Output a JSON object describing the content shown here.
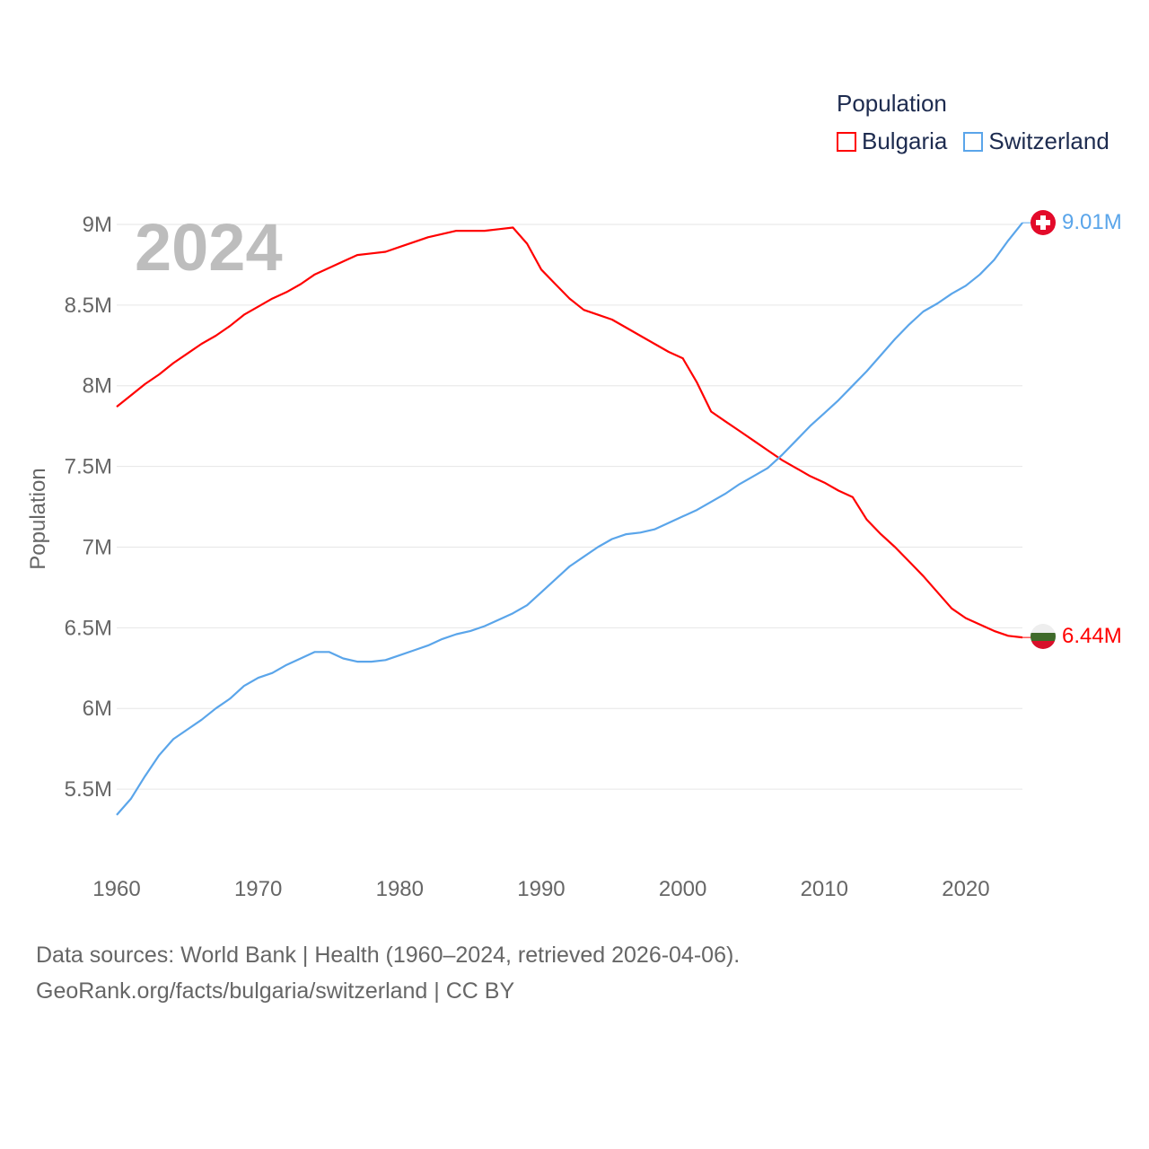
{
  "legend": {
    "title": "Population",
    "items": [
      {
        "label": "Bulgaria",
        "color": "#ff0000"
      },
      {
        "label": "Switzerland",
        "color": "#5aa5ea"
      }
    ]
  },
  "year_label": "2024",
  "end_labels": {
    "switzerland": "9.01M",
    "bulgaria": "6.44M"
  },
  "footer": {
    "line1": "Data sources: World Bank | Health (1960–2024, retrieved 2026-04-06).",
    "line2": "GeoRank.org/facts/bulgaria/switzerland | CC BY"
  },
  "chart_data": {
    "type": "line",
    "title": "",
    "xlabel": "",
    "ylabel": "Population",
    "xlim": [
      1960,
      2024
    ],
    "ylim": [
      5100000,
      9200000
    ],
    "x_ticks": [
      1960,
      1970,
      1980,
      1990,
      2000,
      2010,
      2020
    ],
    "y_ticks": [
      {
        "v": 5500000,
        "label": "5.5M"
      },
      {
        "v": 6000000,
        "label": "6M"
      },
      {
        "v": 6500000,
        "label": "6.5M"
      },
      {
        "v": 7000000,
        "label": "7M"
      },
      {
        "v": 7500000,
        "label": "7.5M"
      },
      {
        "v": 8000000,
        "label": "8M"
      },
      {
        "v": 8500000,
        "label": "8.5M"
      },
      {
        "v": 9000000,
        "label": "9M"
      }
    ],
    "grid": true,
    "legend_position": "top-right",
    "x": [
      1960,
      1961,
      1962,
      1963,
      1964,
      1965,
      1966,
      1967,
      1968,
      1969,
      1970,
      1971,
      1972,
      1973,
      1974,
      1975,
      1976,
      1977,
      1978,
      1979,
      1980,
      1981,
      1982,
      1983,
      1984,
      1985,
      1986,
      1987,
      1988,
      1989,
      1990,
      1991,
      1992,
      1993,
      1994,
      1995,
      1996,
      1997,
      1998,
      1999,
      2000,
      2001,
      2002,
      2003,
      2004,
      2005,
      2006,
      2007,
      2008,
      2009,
      2010,
      2011,
      2012,
      2013,
      2014,
      2015,
      2016,
      2017,
      2018,
      2019,
      2020,
      2021,
      2022,
      2023,
      2024
    ],
    "series": [
      {
        "name": "Bulgaria",
        "color": "#ff0000",
        "values": [
          7.87,
          7.94,
          8.01,
          8.07,
          8.14,
          8.2,
          8.26,
          8.31,
          8.37,
          8.44,
          8.49,
          8.54,
          8.58,
          8.63,
          8.69,
          8.73,
          8.77,
          8.81,
          8.82,
          8.83,
          8.86,
          8.89,
          8.92,
          8.94,
          8.96,
          8.96,
          8.96,
          8.97,
          8.98,
          8.88,
          8.72,
          8.63,
          8.54,
          8.47,
          8.44,
          8.41,
          8.36,
          8.31,
          8.26,
          8.21,
          8.17,
          8.02,
          7.84,
          7.78,
          7.72,
          7.66,
          7.6,
          7.54,
          7.49,
          7.44,
          7.4,
          7.35,
          7.31,
          7.17,
          7.08,
          7.0,
          6.91,
          6.82,
          6.72,
          6.62,
          6.56,
          6.52,
          6.48,
          6.45,
          6.44
        ]
      },
      {
        "name": "Switzerland",
        "color": "#5aa5ea",
        "values": [
          5.34,
          5.44,
          5.58,
          5.71,
          5.81,
          5.87,
          5.93,
          6.0,
          6.06,
          6.14,
          6.19,
          6.22,
          6.27,
          6.31,
          6.35,
          6.35,
          6.31,
          6.29,
          6.29,
          6.3,
          6.33,
          6.36,
          6.39,
          6.43,
          6.46,
          6.48,
          6.51,
          6.55,
          6.59,
          6.64,
          6.72,
          6.8,
          6.88,
          6.94,
          7.0,
          7.05,
          7.08,
          7.09,
          7.11,
          7.15,
          7.19,
          7.23,
          7.28,
          7.33,
          7.39,
          7.44,
          7.49,
          7.57,
          7.66,
          7.75,
          7.83,
          7.91,
          8.0,
          8.09,
          8.19,
          8.29,
          8.38,
          8.46,
          8.51,
          8.57,
          8.62,
          8.69,
          8.78,
          8.9,
          9.01
        ]
      }
    ],
    "value_unit": "millions"
  }
}
